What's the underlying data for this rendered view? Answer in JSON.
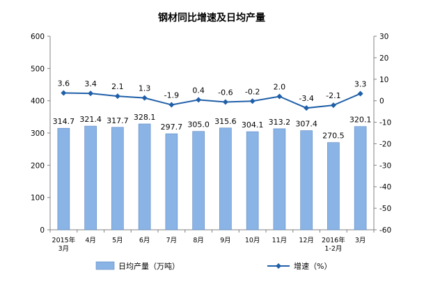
{
  "chart_data": {
    "type": "bar",
    "title": "钢材同比增速及日均产量",
    "categories": [
      [
        "2015年",
        "3月"
      ],
      [
        "4月"
      ],
      [
        "5月"
      ],
      [
        "6月"
      ],
      [
        "7月"
      ],
      [
        "8月"
      ],
      [
        "9月"
      ],
      [
        "10月"
      ],
      [
        "11月"
      ],
      [
        "12月"
      ],
      [
        "2016年",
        "1-2月"
      ],
      [
        "3月"
      ]
    ],
    "series": [
      {
        "name": "日均产量（万吨）",
        "type": "bar",
        "axis": "left",
        "color": "#8ab4e6",
        "values": [
          314.7,
          321.4,
          317.7,
          328.1,
          297.7,
          305.0,
          315.6,
          304.1,
          313.2,
          307.4,
          270.5,
          320.1
        ],
        "labels": [
          "314.7",
          "321.4",
          "317.7",
          "328.1",
          "297.7",
          "305.0",
          "315.6",
          "304.1",
          "313.2",
          "307.4",
          "270.5",
          "320.1"
        ]
      },
      {
        "name": "增速（%）",
        "type": "line",
        "axis": "right",
        "color": "#1f5fa8",
        "marker": "diamond",
        "values": [
          3.6,
          3.4,
          2.1,
          1.3,
          -1.9,
          0.4,
          -0.6,
          -0.2,
          2.0,
          -3.4,
          -2.1,
          3.3
        ],
        "labels": [
          "3.6",
          "3.4",
          "2.1",
          "1.3",
          "-1.9",
          "0.4",
          "-0.6",
          "-0.2",
          "2.0",
          "-3.4",
          "-2.1",
          "3.3"
        ]
      }
    ],
    "y_left": {
      "min": 0,
      "max": 600,
      "step": 100,
      "ticks": [
        "0",
        "100",
        "200",
        "300",
        "400",
        "500",
        "600"
      ]
    },
    "y_right": {
      "min": -60,
      "max": 30,
      "step": 10,
      "ticks": [
        "-60",
        "-50",
        "-40",
        "-30",
        "-20",
        "-10",
        "0",
        "10",
        "20",
        "30"
      ]
    },
    "grid": false,
    "legend": "bottom"
  }
}
